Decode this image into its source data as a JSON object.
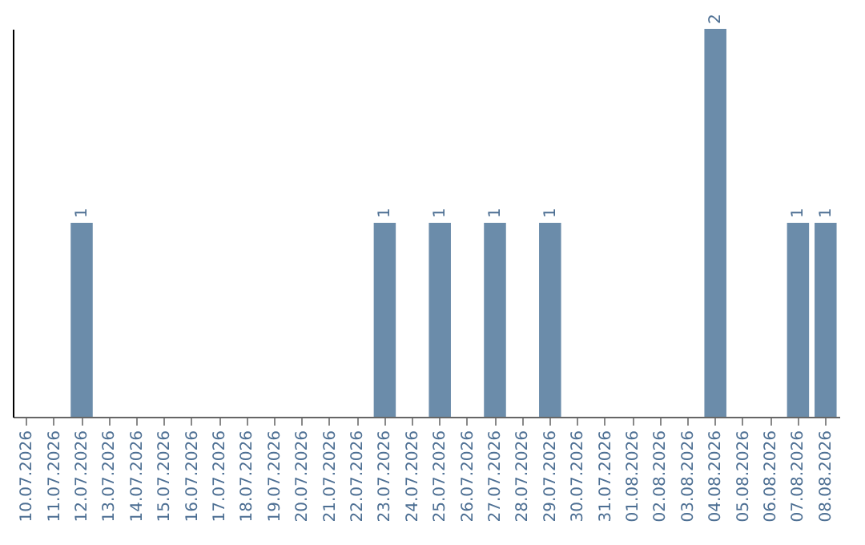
{
  "chart_data": {
    "type": "bar",
    "categories": [
      "10.07.2026",
      "11.07.2026",
      "12.07.2026",
      "13.07.2026",
      "14.07.2026",
      "15.07.2026",
      "16.07.2026",
      "17.07.2026",
      "18.07.2026",
      "19.07.2026",
      "20.07.2026",
      "21.07.2026",
      "22.07.2026",
      "23.07.2026",
      "24.07.2026",
      "25.07.2026",
      "26.07.2026",
      "27.07.2026",
      "28.07.2026",
      "29.07.2026",
      "30.07.2026",
      "31.07.2026",
      "01.08.2026",
      "02.08.2026",
      "03.08.2026",
      "04.08.2026",
      "05.08.2026",
      "06.08.2026",
      "07.08.2026",
      "08.08.2026"
    ],
    "values": [
      0,
      0,
      1,
      0,
      0,
      0,
      0,
      0,
      0,
      0,
      0,
      0,
      0,
      1,
      0,
      1,
      0,
      1,
      0,
      1,
      0,
      0,
      0,
      0,
      0,
      2,
      0,
      0,
      1,
      1
    ],
    "value_labels": [
      null,
      null,
      "1",
      null,
      null,
      null,
      null,
      null,
      null,
      null,
      null,
      null,
      null,
      "1",
      null,
      "1",
      null,
      "1",
      null,
      "1",
      null,
      null,
      null,
      null,
      null,
      "2",
      null,
      null,
      "1",
      "1"
    ],
    "color": "#6b8caa",
    "relative": false
  }
}
